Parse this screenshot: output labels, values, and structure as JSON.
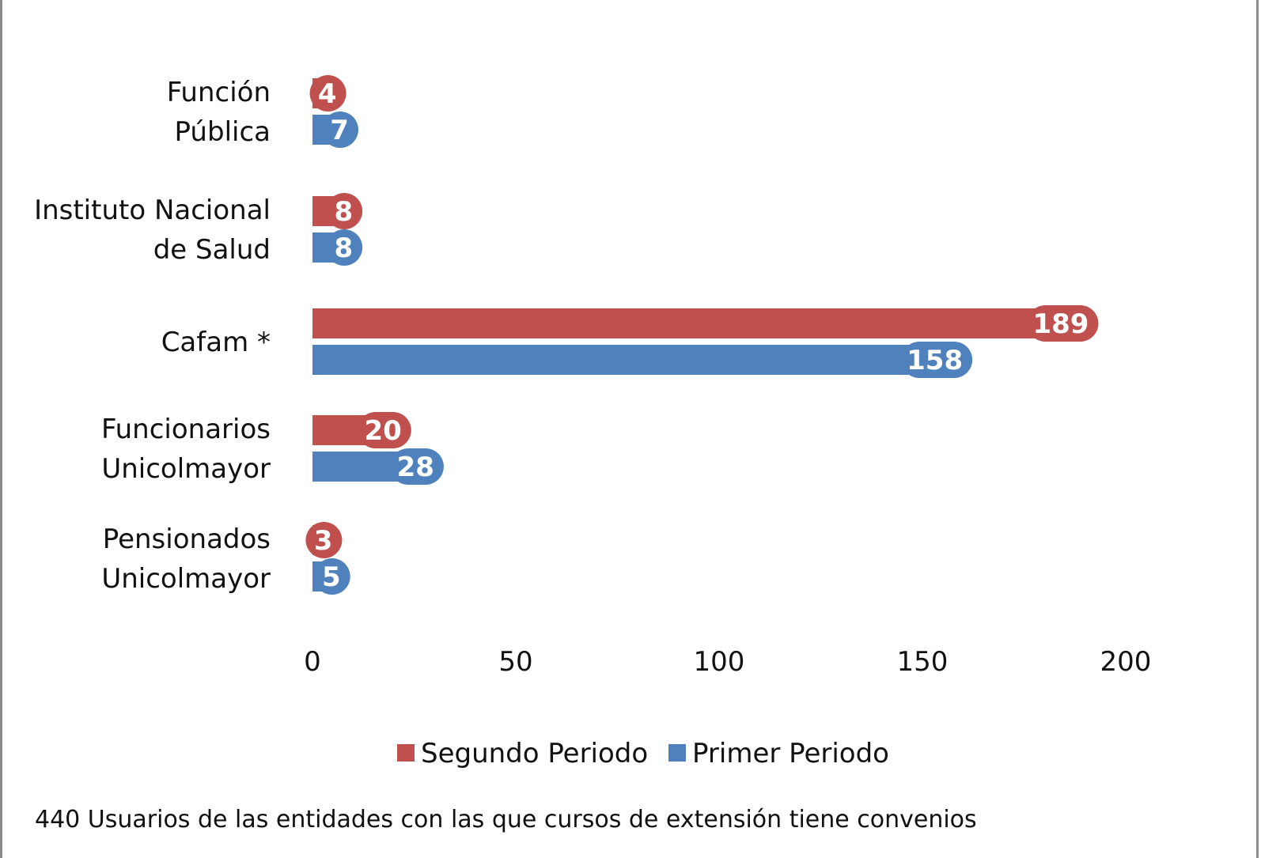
{
  "chart_data": {
    "type": "bar",
    "orientation": "horizontal",
    "categories": [
      [
        "Función",
        "Pública"
      ],
      [
        "Instituto Nacional",
        "de Salud"
      ],
      [
        "Cafam *"
      ],
      [
        "Funcionarios",
        "Unicolmayor"
      ],
      [
        "Pensionados",
        "Unicolmayor"
      ]
    ],
    "series": [
      {
        "name": "Segundo Periodo",
        "color": "#c0504d",
        "values": [
          4,
          8,
          189,
          20,
          3
        ]
      },
      {
        "name": "Primer Periodo",
        "color": "#4f81bd",
        "values": [
          7,
          8,
          158,
          28,
          5
        ]
      }
    ],
    "xlim": [
      0,
      200
    ],
    "xticks": [
      "0",
      "50",
      "100",
      "150",
      "200"
    ],
    "legend_position": "bottom",
    "grid": false,
    "data_labels": true
  },
  "caption": "440 Usuarios de las entidades con las que cursos de extensión tiene convenios"
}
